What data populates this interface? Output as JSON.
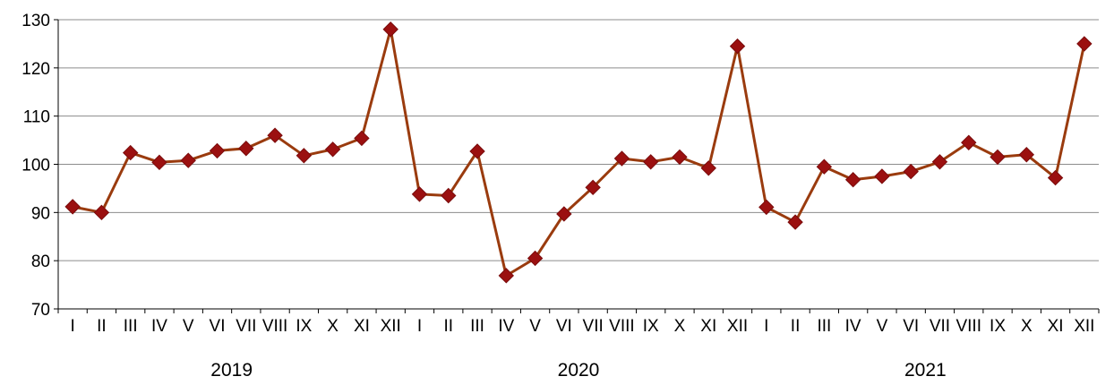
{
  "chart_data": {
    "type": "line",
    "title": "",
    "xlabel": "",
    "ylabel": "",
    "ylim": [
      70,
      130
    ],
    "yticks": [
      70,
      80,
      90,
      100,
      110,
      120,
      130
    ],
    "grid": "horizontal",
    "legend": "none",
    "categories": [
      "I",
      "II",
      "III",
      "IV",
      "V",
      "VI",
      "VII",
      "VIII",
      "IX",
      "X",
      "XI",
      "XII",
      "I",
      "II",
      "III",
      "IV",
      "V",
      "VI",
      "VII",
      "VIII",
      "IX",
      "X",
      "XI",
      "XII",
      "I",
      "II",
      "III",
      "IV",
      "V",
      "VI",
      "VII",
      "VIII",
      "IX",
      "X",
      "XI",
      "XII"
    ],
    "years": [
      "2019",
      "2020",
      "2021"
    ],
    "series": [
      {
        "values": [
          91.2,
          90.0,
          102.4,
          100.4,
          100.8,
          102.8,
          103.3,
          106.0,
          101.8,
          103.1,
          105.4,
          128.0,
          93.8,
          93.5,
          102.7,
          76.9,
          80.5,
          89.7,
          95.2,
          101.2,
          100.5,
          101.5,
          99.2,
          124.5,
          91.1,
          88.0,
          99.5,
          96.8,
          97.5,
          98.5,
          100.5,
          104.5,
          101.5,
          102.0,
          97.2,
          125.0
        ],
        "line_color": "#9a3b0e",
        "marker_color": "#9b1010",
        "marker": "diamond"
      }
    ]
  }
}
